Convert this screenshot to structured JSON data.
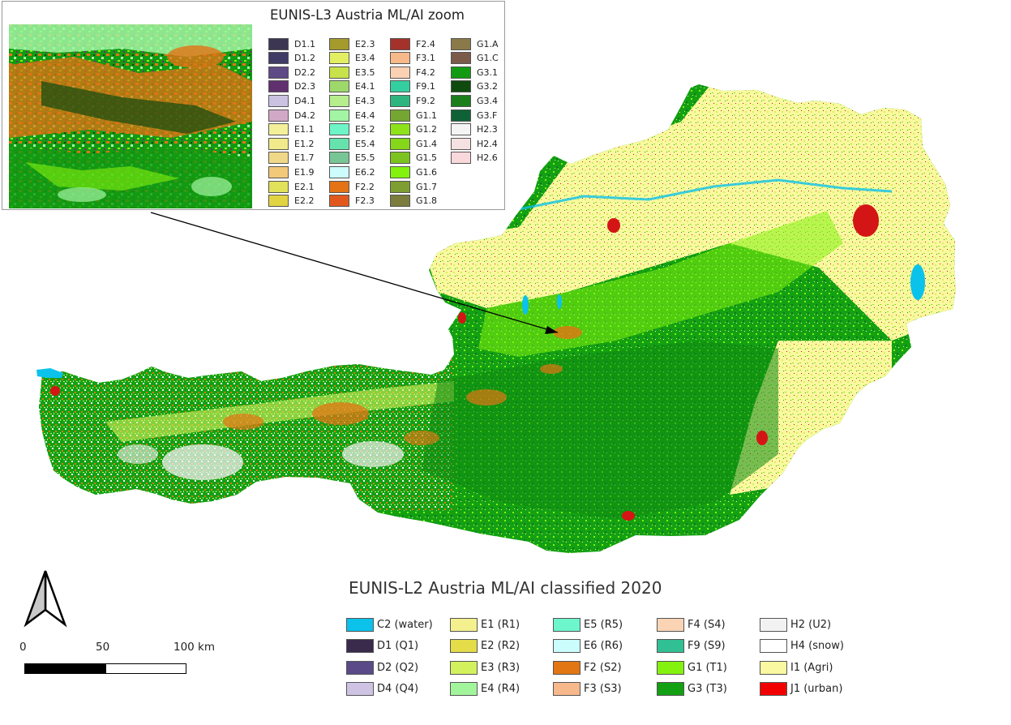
{
  "inset": {
    "title": "EUNIS-L3 Austria ML/AI zoom",
    "legend_columns": [
      [
        {
          "code": "D1.1",
          "color": "#3d3653"
        },
        {
          "code": "D1.2",
          "color": "#3f3a66"
        },
        {
          "code": "D2.2",
          "color": "#5e4a86"
        },
        {
          "code": "D2.3",
          "color": "#60306f"
        },
        {
          "code": "D4.1",
          "color": "#cbc2e2"
        },
        {
          "code": "D4.2",
          "color": "#d2a8c7"
        },
        {
          "code": "E1.1",
          "color": "#f4f09a"
        },
        {
          "code": "E1.2",
          "color": "#f1ea8a"
        },
        {
          "code": "E1.7",
          "color": "#f0d888"
        },
        {
          "code": "E1.9",
          "color": "#f2c879"
        },
        {
          "code": "E2.1",
          "color": "#e2e15a"
        },
        {
          "code": "E2.2",
          "color": "#e2d342"
        }
      ],
      [
        {
          "code": "E2.3",
          "color": "#a59a2c"
        },
        {
          "code": "E3.4",
          "color": "#e2ef63"
        },
        {
          "code": "E3.5",
          "color": "#c8e24a"
        },
        {
          "code": "E4.1",
          "color": "#9ed86b"
        },
        {
          "code": "E4.3",
          "color": "#b6ee8e"
        },
        {
          "code": "E4.4",
          "color": "#a2f5a2"
        },
        {
          "code": "E5.2",
          "color": "#6df5c8"
        },
        {
          "code": "E5.4",
          "color": "#66e3ad"
        },
        {
          "code": "E5.5",
          "color": "#78c695"
        },
        {
          "code": "E6.2",
          "color": "#ccfcfb"
        },
        {
          "code": "F2.2",
          "color": "#e37314"
        },
        {
          "code": "F2.3",
          "color": "#e2581c"
        }
      ],
      [
        {
          "code": "F2.4",
          "color": "#a4322b"
        },
        {
          "code": "F3.1",
          "color": "#f7b98a"
        },
        {
          "code": "F4.2",
          "color": "#fad2b3"
        },
        {
          "code": "F9.1",
          "color": "#33cfa0"
        },
        {
          "code": "F9.2",
          "color": "#2eb57f"
        },
        {
          "code": "G1.1",
          "color": "#74a631"
        },
        {
          "code": "G1.2",
          "color": "#8de21a"
        },
        {
          "code": "G1.4",
          "color": "#86d61a"
        },
        {
          "code": "G1.5",
          "color": "#7cc31f"
        },
        {
          "code": "G1.6",
          "color": "#84f20f"
        },
        {
          "code": "G1.7",
          "color": "#7e9e31"
        },
        {
          "code": "G1.8",
          "color": "#7a7d3c"
        }
      ],
      [
        {
          "code": "G1.A",
          "color": "#8a7a4a"
        },
        {
          "code": "G1.C",
          "color": "#7b5a4a"
        },
        {
          "code": "G3.1",
          "color": "#139a13"
        },
        {
          "code": "G3.2",
          "color": "#0f4a0f"
        },
        {
          "code": "G3.4",
          "color": "#1b7e1b"
        },
        {
          "code": "G3.F",
          "color": "#0f6236"
        },
        {
          "code": "H2.3",
          "color": "#f4f4f4"
        },
        {
          "code": "H2.4",
          "color": "#f5e1e1"
        },
        {
          "code": "H2.6",
          "color": "#f9d8dc"
        }
      ]
    ]
  },
  "main_title": "EUNIS-L2 Austria ML/AI classified 2020",
  "legend_columns": [
    [
      {
        "label": "C2 (water)",
        "color": "#0bc2eb"
      },
      {
        "label": "D1 (Q1)",
        "color": "#3a2a4c"
      },
      {
        "label": "D2 (Q2)",
        "color": "#5a4a87"
      },
      {
        "label": "D4 (Q4)",
        "color": "#cec3e3"
      }
    ],
    [
      {
        "label": "E1 (R1)",
        "color": "#f4f08e"
      },
      {
        "label": "E2 (R2)",
        "color": "#e4dc48"
      },
      {
        "label": "E3 (R3)",
        "color": "#d3f15d"
      },
      {
        "label": "E4 (R4)",
        "color": "#a3f59b"
      }
    ],
    [
      {
        "label": "E5 (R5)",
        "color": "#6df5cc"
      },
      {
        "label": "E6 (R6)",
        "color": "#ccfdfd"
      },
      {
        "label": "F2 (S2)",
        "color": "#e27613"
      },
      {
        "label": "F3 (S3)",
        "color": "#f7b88c"
      }
    ],
    [
      {
        "label": "F4 (S4)",
        "color": "#fad4b5"
      },
      {
        "label": "F9 (S9)",
        "color": "#31c094"
      },
      {
        "label": "G1 (T1)",
        "color": "#84f20f"
      },
      {
        "label": "G3 (T3)",
        "color": "#13a013"
      }
    ],
    [
      {
        "label": "H2 (U2)",
        "color": "#f2f2f2"
      },
      {
        "label": "H4 (snow)",
        "color": "#ffffff"
      },
      {
        "label": "I1 (Agri)",
        "color": "#faf8a0"
      },
      {
        "label": "J1 (urban)",
        "color": "#f20000"
      }
    ]
  ],
  "scale": {
    "labels": [
      "0",
      "50",
      "100 km"
    ],
    "colors": [
      "#000000",
      "#ffffff"
    ]
  },
  "colors": {
    "forest": "#13a013",
    "grassland": "#84f20f",
    "agri": "#faf8a0",
    "sparse": "#d3f15d",
    "shrub": "#e27613",
    "urban": "#d41515",
    "water": "#0bc2eb",
    "snow": "#f2f2f2",
    "dark_forest": "#0f4a0f"
  }
}
